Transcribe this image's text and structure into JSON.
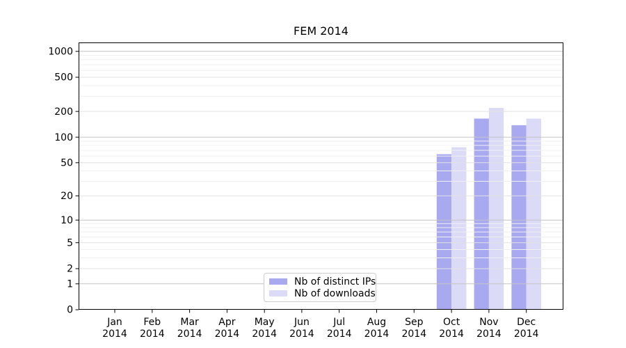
{
  "chart_data": {
    "type": "bar",
    "title": "FEM 2014",
    "categories": [
      "Jan",
      "Feb",
      "Mar",
      "Apr",
      "May",
      "Jun",
      "Jul",
      "Aug",
      "Sep",
      "Oct",
      "Nov",
      "Dec"
    ],
    "year_label": "2014",
    "series": [
      {
        "name": "Nb of distinct IPs",
        "color": "#a9a9f0",
        "values": [
          0,
          0,
          0,
          0,
          0,
          0,
          0,
          0,
          0,
          63,
          165,
          138
        ]
      },
      {
        "name": "Nb of downloads",
        "color": "#dbdbf7",
        "values": [
          0,
          0,
          0,
          0,
          0,
          0,
          0,
          0,
          0,
          76,
          220,
          165
        ]
      }
    ],
    "xlabel": "",
    "ylabel": "",
    "yscale": "log1p",
    "ytick_labels": [
      0,
      1,
      2,
      5,
      10,
      20,
      50,
      100,
      200,
      500,
      1000
    ],
    "ylim": [
      0,
      1270
    ],
    "grid": true,
    "legend_position": "lower center"
  }
}
